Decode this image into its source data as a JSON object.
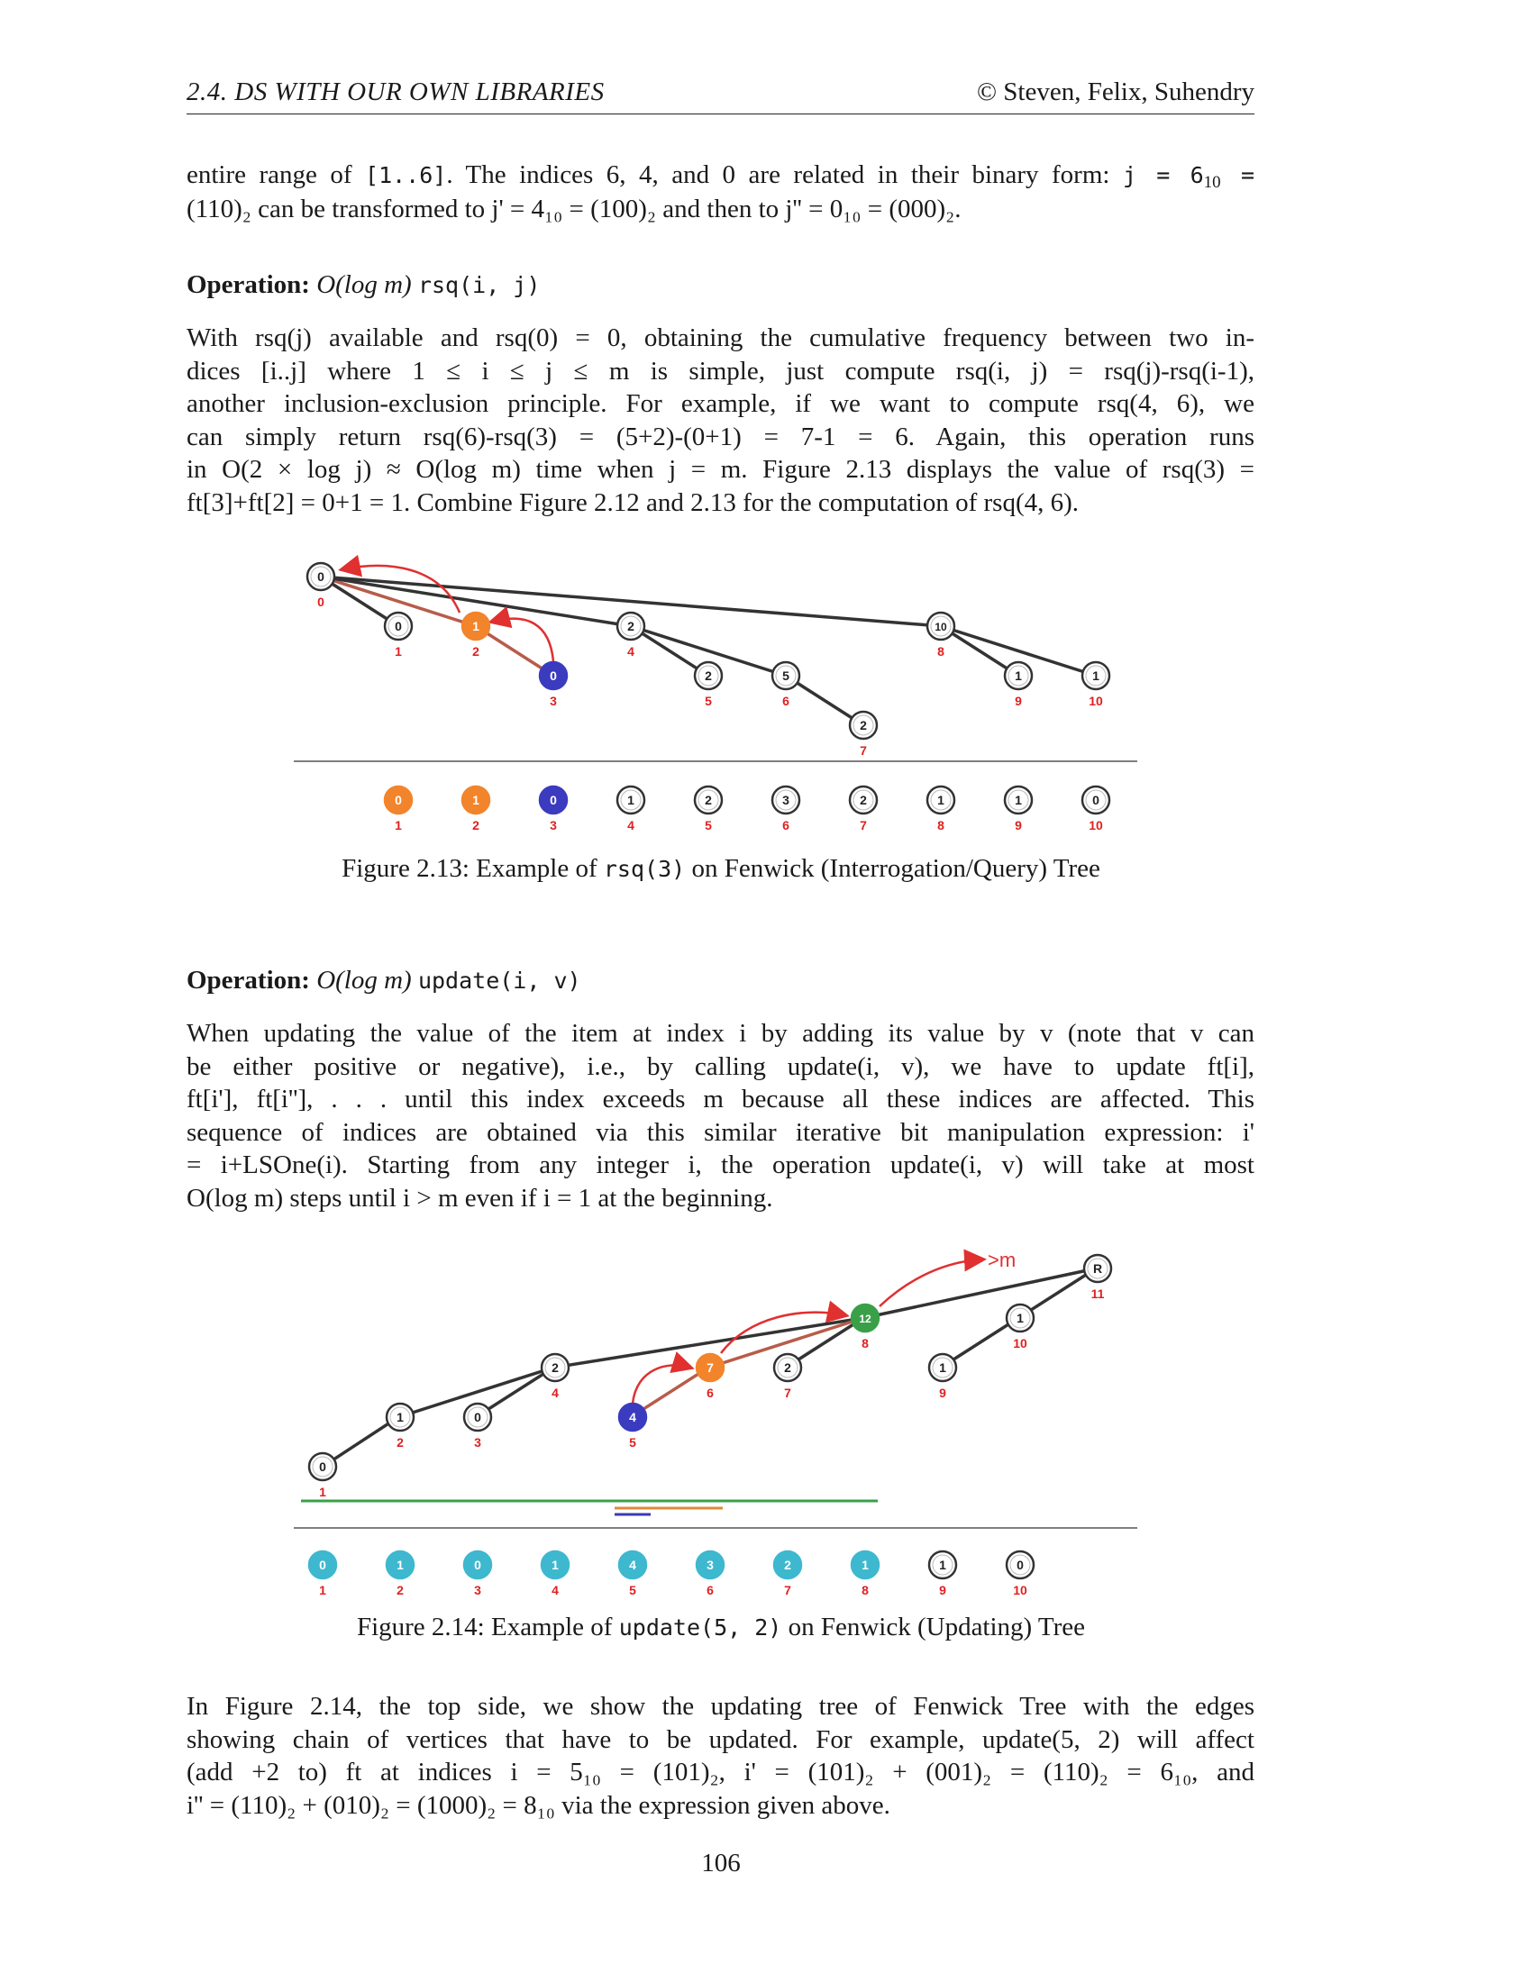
{
  "header": {
    "section": "2.4.  DS WITH OUR OWN LIBRARIES",
    "authors": "© Steven, Felix, Suhendry"
  },
  "intro": {
    "l1a": "entire range of ",
    "l1code": "[1..6]",
    "l1b": ". The indices 6, 4, and 0 are related in their binary form: ",
    "l1code2": "j = 6",
    "l1sub": "10",
    "l1c": " =",
    "l2": "(110)₂ can be transformed to j' = 4₁₀ = (100)₂ and then to j'' = 0₁₀ = (000)₂."
  },
  "rsq_heading": {
    "label": "Operation:",
    "complexity": "O(log m)",
    "call": "rsq(i, j)"
  },
  "rsq_paragraph": [
    "With rsq(j) available and rsq(0) = 0, obtaining the cumulative frequency between two in-",
    "dices [i..j] where 1 ≤ i ≤ j ≤ m is simple, just compute rsq(i, j) = rsq(j)-rsq(i-1),",
    "another inclusion-exclusion principle. For example, if we want to compute rsq(4, 6), we",
    "can simply return rsq(6)-rsq(3) = (5+2)-(0+1) = 7-1 = 6. Again, this operation runs",
    "in O(2 × log j) ≈ O(log m) time when j = m. Figure 2.13 displays the value of rsq(3) =",
    "ft[3]+ft[2] = 0+1 = 1. Combine Figure 2.12 and 2.13 for the computation of rsq(4, 6)."
  ],
  "figure13": {
    "caption_a": "Figure 2.13: Example of ",
    "caption_code": "rsq(3)",
    "caption_b": " on Fenwick (Interrogation/Query) Tree",
    "tree_nodes": [
      {
        "value": "0",
        "index": "0",
        "style": "plain"
      },
      {
        "value": "0",
        "index": "1",
        "style": "plain"
      },
      {
        "value": "1",
        "index": "2",
        "style": "orange"
      },
      {
        "value": "0",
        "index": "3",
        "style": "blue"
      },
      {
        "value": "2",
        "index": "4",
        "style": "plain"
      },
      {
        "value": "2",
        "index": "5",
        "style": "plain"
      },
      {
        "value": "5",
        "index": "6",
        "style": "plain"
      },
      {
        "value": "2",
        "index": "7",
        "style": "plain"
      },
      {
        "value": "10",
        "index": "8",
        "style": "plain"
      },
      {
        "value": "1",
        "index": "9",
        "style": "plain"
      },
      {
        "value": "1",
        "index": "10",
        "style": "plain"
      }
    ],
    "array": [
      {
        "value": "0",
        "index": "1",
        "style": "orange"
      },
      {
        "value": "1",
        "index": "2",
        "style": "orange"
      },
      {
        "value": "0",
        "index": "3",
        "style": "blue"
      },
      {
        "value": "1",
        "index": "4",
        "style": "plain"
      },
      {
        "value": "2",
        "index": "5",
        "style": "plain"
      },
      {
        "value": "3",
        "index": "6",
        "style": "plain"
      },
      {
        "value": "2",
        "index": "7",
        "style": "plain"
      },
      {
        "value": "1",
        "index": "8",
        "style": "plain"
      },
      {
        "value": "1",
        "index": "9",
        "style": "plain"
      },
      {
        "value": "0",
        "index": "10",
        "style": "plain"
      }
    ]
  },
  "update_heading": {
    "label": "Operation:",
    "complexity": "O(log m)",
    "call": "update(i, v)"
  },
  "update_paragraph": [
    "When updating the value of the item at index i by adding its value by v (note that v can",
    "be either positive or negative), i.e., by calling update(i, v), we have to update ft[i],",
    "ft[i'], ft[i''], . . . until this index exceeds m because all these indices are affected. This",
    "sequence of indices are obtained via this similar iterative bit manipulation expression: i'",
    "= i+LSOne(i). Starting from any integer i, the operation update(i, v) will take at most",
    "O(log m) steps until i > m even if i = 1 at the beginning."
  ],
  "figure14": {
    "caption_a": "Figure 2.14: Example of ",
    "caption_code": "update(5, 2)",
    "caption_b": " on Fenwick (Updating) Tree",
    "exceed_label": ">m",
    "tree_nodes": [
      {
        "value": "0",
        "index": "1",
        "style": "plain"
      },
      {
        "value": "1",
        "index": "2",
        "style": "plain"
      },
      {
        "value": "0",
        "index": "3",
        "style": "plain"
      },
      {
        "value": "2",
        "index": "4",
        "style": "plain"
      },
      {
        "value": "4",
        "index": "5",
        "style": "blue"
      },
      {
        "value": "7",
        "index": "6",
        "style": "orange"
      },
      {
        "value": "2",
        "index": "7",
        "style": "plain"
      },
      {
        "value": "12",
        "index": "8",
        "style": "green"
      },
      {
        "value": "1",
        "index": "9",
        "style": "plain"
      },
      {
        "value": "1",
        "index": "10",
        "style": "plain"
      },
      {
        "value": "R",
        "index": "11",
        "style": "plain"
      }
    ],
    "array": [
      {
        "value": "0",
        "index": "1",
        "style": "cyan"
      },
      {
        "value": "1",
        "index": "2",
        "style": "cyan"
      },
      {
        "value": "0",
        "index": "3",
        "style": "cyan"
      },
      {
        "value": "1",
        "index": "4",
        "style": "cyan"
      },
      {
        "value": "4",
        "index": "5",
        "style": "cyan"
      },
      {
        "value": "3",
        "index": "6",
        "style": "cyan"
      },
      {
        "value": "2",
        "index": "7",
        "style": "cyan"
      },
      {
        "value": "1",
        "index": "8",
        "style": "cyan"
      },
      {
        "value": "1",
        "index": "9",
        "style": "plain"
      },
      {
        "value": "0",
        "index": "10",
        "style": "plain"
      }
    ]
  },
  "closing_paragraph": [
    "In Figure 2.14, the top side, we show the updating tree of Fenwick Tree with the edges",
    "showing chain of vertices that have to be updated. For example, update(5, 2) will affect",
    "(add +2 to) ft at indices i = 5₁₀ = (101)₂, i' = (101)₂ + (001)₂ = (110)₂ = 6₁₀, and",
    "i'' = (110)₂ + (010)₂ = (1000)₂ = 8₁₀ via the expression given above."
  ],
  "page_number": "106"
}
